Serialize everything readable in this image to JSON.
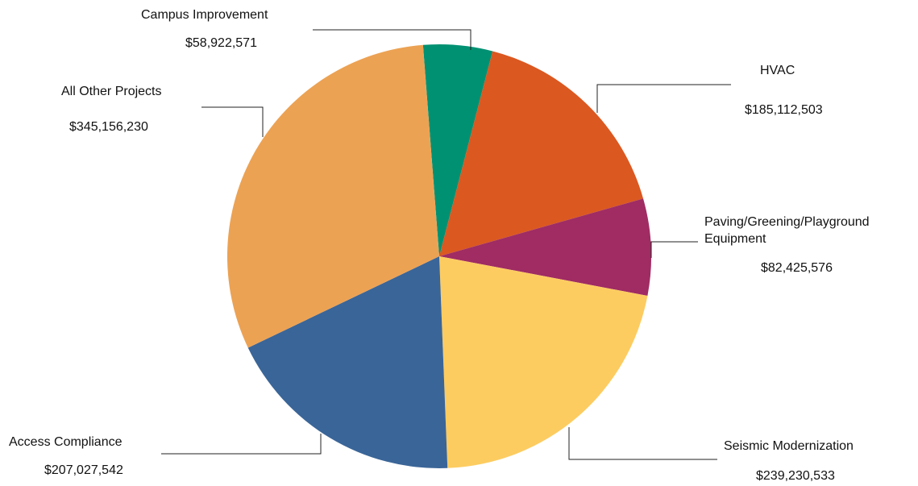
{
  "chart_data": {
    "type": "pie",
    "title": "",
    "start_angle_deg": -4.4,
    "direction": "clockwise",
    "slices": [
      {
        "label": "Campus Improvement",
        "value": 58922571,
        "value_label": "$58,922,571",
        "color": "#009172"
      },
      {
        "label": "HVAC",
        "value": 185112503,
        "value_label": "$185,112,503",
        "color": "#db5820"
      },
      {
        "label": "Paving/Greening/Playground Equipment",
        "value": 82425576,
        "value_label": "$82,425,576",
        "color": "#a02c63"
      },
      {
        "label": "Seismic Modernization",
        "value": 239230533,
        "value_label": "$239,230,533",
        "color": "#fdcc60"
      },
      {
        "label": "Access Compliance",
        "value": 207027542,
        "value_label": "$207,027,542",
        "color": "#3a6598"
      },
      {
        "label": "All Other Projects",
        "value": 345156230,
        "value_label": "$345,156,230",
        "color": "#eca253"
      }
    ]
  }
}
